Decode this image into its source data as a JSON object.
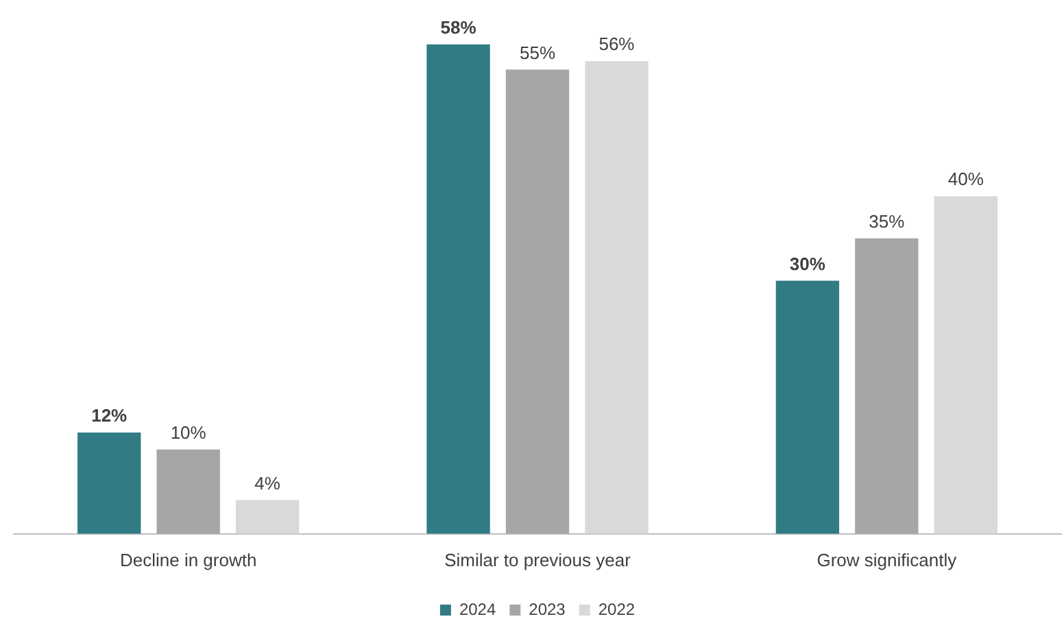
{
  "chart_data": {
    "type": "bar",
    "categories": [
      "Decline in growth",
      "Similar to previous year",
      "Grow significantly"
    ],
    "series": [
      {
        "name": "2024",
        "color": "#317c84",
        "values": [
          12,
          58,
          30
        ],
        "value_labels": [
          "12%",
          "58%",
          "30%"
        ]
      },
      {
        "name": "2023",
        "color": "#a6a6a6",
        "values": [
          10,
          55,
          35
        ],
        "value_labels": [
          "10%",
          "55%",
          "35%"
        ]
      },
      {
        "name": "2022",
        "color": "#d9d9d9",
        "values": [
          4,
          56,
          40
        ],
        "value_labels": [
          "4%",
          "56%",
          "40%"
        ]
      }
    ],
    "legend": "bottom",
    "grid": false
  }
}
